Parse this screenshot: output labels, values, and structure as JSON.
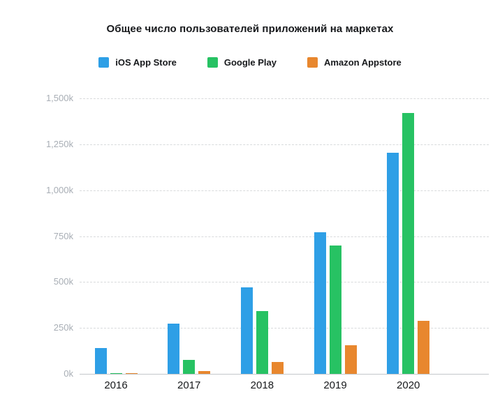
{
  "title": "Общее число пользователей приложений на маркетах",
  "chart_data": {
    "type": "bar",
    "title": "Общее число пользователей приложений на маркетах",
    "categories": [
      "2016",
      "2017",
      "2018",
      "2019",
      "2020"
    ],
    "series": [
      {
        "name": "iOS App Store",
        "color": "#2E9FE6",
        "values": [
          140,
          275,
          470,
          770,
          1205
        ]
      },
      {
        "name": "Google Play",
        "color": "#27C263",
        "values": [
          5,
          75,
          340,
          700,
          1420
        ]
      },
      {
        "name": "Amazon Appstore",
        "color": "#E8872E",
        "values": [
          2,
          15,
          65,
          155,
          290
        ]
      }
    ],
    "unit": "k",
    "xlabel": "",
    "ylabel": "",
    "ylim": [
      0,
      1500
    ],
    "y_ticks": [
      {
        "value": 0,
        "label": "0k"
      },
      {
        "value": 250,
        "label": "250k"
      },
      {
        "value": 500,
        "label": "500k"
      },
      {
        "value": 750,
        "label": "750k"
      },
      {
        "value": 1000,
        "label": "1,000k"
      },
      {
        "value": 1250,
        "label": "1,250k"
      },
      {
        "value": 1500,
        "label": "1,500k"
      }
    ],
    "grid": "horizontal-dashed",
    "legend_position": "top"
  }
}
